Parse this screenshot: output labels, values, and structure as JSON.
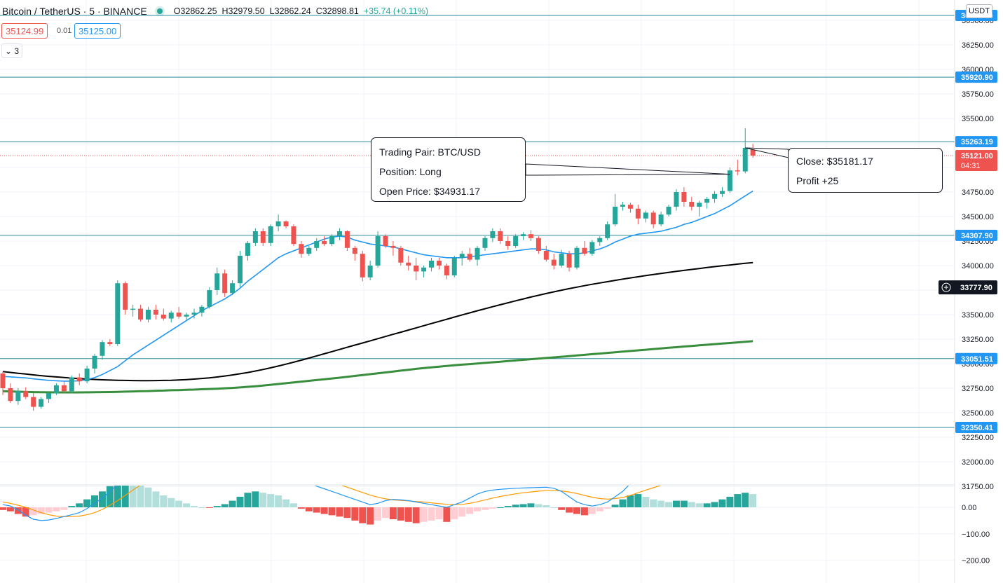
{
  "header": {
    "symbol": "Bitcoin / TetherUS · 5 · BINANCE",
    "ohlc_o": "O32862.25",
    "ohlc_h": "H32979.50",
    "ohlc_l": "L32862.24",
    "ohlc_c": "C32898.81",
    "change": "+35.74 (+0.11%)"
  },
  "trade": {
    "sell_price": "35124.99",
    "spread": "0.01",
    "buy_price": "35125.00"
  },
  "indicator_toggle": {
    "label": "⌄ 3"
  },
  "currency_label": "USDT",
  "annotations": {
    "open": {
      "line1": "Trading Pair: BTC/USD",
      "line2": "Position: Long",
      "line3": "Open Price: $34931.17"
    },
    "close": {
      "line1": "Close: $35181.17",
      "line2": "Profit +25"
    }
  },
  "colors": {
    "up": "#26a69a",
    "down": "#ef5350",
    "hline": "#2b8b9b",
    "ma_fast": "#2196f3",
    "ma_mid": "#000000",
    "ma_slow": "#388e3c",
    "macd_line": "#2196f3",
    "signal_line": "#ff9800",
    "price_badge": "#2196f3",
    "current_badge": "#ef5350"
  },
  "chart_data": {
    "type": "candlestick",
    "title": "",
    "ylim": [
      31600,
      36550
    ],
    "y_ticks": [
      31750,
      32000,
      32250,
      32500,
      32750,
      33000,
      33250,
      33500,
      33750,
      34000,
      34250,
      34500,
      34750,
      35000,
      35250,
      35500,
      35750,
      36000,
      36250,
      36500
    ],
    "y_tick_labels": [
      "31750.00",
      "32000.00",
      "32250.00",
      "32500.00",
      "32750.00",
      "33000.00",
      "33250.00",
      "33500.00",
      "33750.00",
      "34000.00",
      "34250.00",
      "34500.00",
      "34750.00",
      "35000.00",
      "35250.00",
      "35500.00",
      "35750.00",
      "36000.00",
      "36250.00",
      "36500.00"
    ],
    "horizontal_levels": [
      {
        "value": 36550.0,
        "label": "36550.00"
      },
      {
        "value": 35920.9,
        "label": "35920.90"
      },
      {
        "value": 35263.19,
        "label": "35263.19"
      },
      {
        "value": 34307.9,
        "label": "34307.90"
      },
      {
        "value": 33051.51,
        "label": "33051.51"
      },
      {
        "value": 32350.41,
        "label": "32350.41"
      }
    ],
    "current_price": {
      "value": 35121.0,
      "label": "35121.00",
      "countdown": "04:31"
    },
    "crosshair_price": {
      "value": 33777.9,
      "label": "33777.90"
    },
    "candles": [
      [
        32900,
        32920,
        32680,
        32750
      ],
      [
        32750,
        32800,
        32600,
        32620
      ],
      [
        32620,
        32750,
        32580,
        32720
      ],
      [
        32720,
        32760,
        32640,
        32660
      ],
      [
        32660,
        32700,
        32520,
        32560
      ],
      [
        32560,
        32660,
        32540,
        32640
      ],
      [
        32640,
        32720,
        32600,
        32700
      ],
      [
        32700,
        32800,
        32680,
        32780
      ],
      [
        32780,
        32820,
        32700,
        32720
      ],
      [
        32720,
        32880,
        32700,
        32860
      ],
      [
        32860,
        32900,
        32780,
        32820
      ],
      [
        32820,
        32980,
        32800,
        32950
      ],
      [
        32950,
        33100,
        32900,
        33080
      ],
      [
        33080,
        33240,
        33040,
        33220
      ],
      [
        33220,
        33250,
        33180,
        33200
      ],
      [
        33200,
        33850,
        33180,
        33820
      ],
      [
        33820,
        33840,
        33500,
        33550
      ],
      [
        33550,
        33600,
        33480,
        33560
      ],
      [
        33560,
        33600,
        33430,
        33450
      ],
      [
        33450,
        33580,
        33420,
        33550
      ],
      [
        33550,
        33600,
        33450,
        33500
      ],
      [
        33500,
        33560,
        33440,
        33460
      ],
      [
        33460,
        33540,
        33420,
        33520
      ],
      [
        33520,
        33580,
        33460,
        33480
      ],
      [
        33480,
        33520,
        33440,
        33500
      ],
      [
        33500,
        33560,
        33460,
        33520
      ],
      [
        33520,
        33600,
        33480,
        33580
      ],
      [
        33580,
        33780,
        33560,
        33750
      ],
      [
        33750,
        33980,
        33700,
        33920
      ],
      [
        33920,
        33960,
        33680,
        33720
      ],
      [
        33720,
        33850,
        33700,
        33820
      ],
      [
        33820,
        34150,
        33780,
        34100
      ],
      [
        34100,
        34250,
        34050,
        34230
      ],
      [
        34230,
        34380,
        34200,
        34350
      ],
      [
        34350,
        34380,
        34200,
        34230
      ],
      [
        34230,
        34420,
        34200,
        34400
      ],
      [
        34400,
        34520,
        34350,
        34450
      ],
      [
        34450,
        34460,
        34380,
        34400
      ],
      [
        34400,
        34420,
        34200,
        34220
      ],
      [
        34220,
        34250,
        34080,
        34120
      ],
      [
        34120,
        34200,
        34100,
        34180
      ],
      [
        34180,
        34280,
        34150,
        34250
      ],
      [
        34250,
        34300,
        34200,
        34220
      ],
      [
        34220,
        34320,
        34200,
        34300
      ],
      [
        34300,
        34380,
        34260,
        34350
      ],
      [
        34350,
        34360,
        34150,
        34180
      ],
      [
        34180,
        34200,
        34050,
        34120
      ],
      [
        34120,
        34150,
        33840,
        33880
      ],
      [
        33880,
        34050,
        33850,
        34000
      ],
      [
        34000,
        34350,
        33980,
        34300
      ],
      [
        34300,
        34320,
        34180,
        34200
      ],
      [
        34200,
        34250,
        34100,
        34180
      ],
      [
        34180,
        34200,
        34000,
        34030
      ],
      [
        34030,
        34100,
        33950,
        34000
      ],
      [
        34000,
        34080,
        33850,
        33940
      ],
      [
        33940,
        34000,
        33880,
        33980
      ],
      [
        33980,
        34080,
        33940,
        34050
      ],
      [
        34050,
        34080,
        33960,
        34000
      ],
      [
        34000,
        34020,
        33860,
        33900
      ],
      [
        33900,
        34100,
        33880,
        34080
      ],
      [
        34080,
        34150,
        34000,
        34120
      ],
      [
        34120,
        34180,
        34040,
        34060
      ],
      [
        34060,
        34200,
        34000,
        34180
      ],
      [
        34180,
        34300,
        34150,
        34280
      ],
      [
        34280,
        34380,
        34240,
        34350
      ],
      [
        34350,
        34380,
        34220,
        34250
      ],
      [
        34250,
        34300,
        34160,
        34200
      ],
      [
        34200,
        34320,
        34180,
        34300
      ],
      [
        34300,
        34340,
        34260,
        34320
      ],
      [
        34320,
        34360,
        34250,
        34280
      ],
      [
        34280,
        34300,
        34120,
        34150
      ],
      [
        34150,
        34200,
        34040,
        34060
      ],
      [
        34060,
        34120,
        33960,
        34000
      ],
      [
        34000,
        34160,
        33980,
        34120
      ],
      [
        34120,
        34150,
        33940,
        33980
      ],
      [
        33980,
        34200,
        33960,
        34180
      ],
      [
        34180,
        34250,
        34100,
        34120
      ],
      [
        34120,
        34260,
        34100,
        34240
      ],
      [
        34240,
        34300,
        34200,
        34280
      ],
      [
        34280,
        34450,
        34260,
        34420
      ],
      [
        34420,
        34730,
        34400,
        34600
      ],
      [
        34600,
        34650,
        34560,
        34620
      ],
      [
        34620,
        34640,
        34540,
        34580
      ],
      [
        34580,
        34620,
        34420,
        34480
      ],
      [
        34480,
        34560,
        34440,
        34540
      ],
      [
        34540,
        34560,
        34380,
        34420
      ],
      [
        34420,
        34550,
        34400,
        34520
      ],
      [
        34520,
        34620,
        34500,
        34600
      ],
      [
        34600,
        34780,
        34560,
        34750
      ],
      [
        34750,
        34800,
        34600,
        34650
      ],
      [
        34650,
        34700,
        34560,
        34600
      ],
      [
        34600,
        34660,
        34500,
        34640
      ],
      [
        34640,
        34700,
        34580,
        34680
      ],
      [
        34680,
        34760,
        34640,
        34730
      ],
      [
        34730,
        34800,
        34700,
        34760
      ],
      [
        34760,
        35000,
        34740,
        34970
      ],
      [
        34970,
        35080,
        34920,
        34960
      ],
      [
        34960,
        35400,
        34940,
        35200
      ],
      [
        35200,
        35240,
        35100,
        35121
      ]
    ],
    "ma_fast": [
      32870,
      32866,
      32860,
      32855,
      32845,
      32838,
      32830,
      32826,
      32822,
      32822,
      32826,
      32838,
      32858,
      32890,
      32930,
      32970,
      33030,
      33090,
      33140,
      33190,
      33240,
      33290,
      33340,
      33390,
      33440,
      33490,
      33540,
      33580,
      33620,
      33660,
      33710,
      33770,
      33840,
      33900,
      33960,
      34020,
      34080,
      34120,
      34150,
      34180,
      34210,
      34240,
      34270,
      34290,
      34300,
      34290,
      34260,
      34240,
      34220,
      34210,
      34200,
      34190,
      34170,
      34150,
      34130,
      34110,
      34100,
      34090,
      34080,
      34080,
      34080,
      34090,
      34100,
      34110,
      34120,
      34130,
      34140,
      34150,
      34160,
      34170,
      34170,
      34160,
      34140,
      34130,
      34120,
      34120,
      34130,
      34150,
      34170,
      34200,
      34240,
      34270,
      34300,
      34320,
      34330,
      34340,
      34350,
      34370,
      34390,
      34420,
      34440,
      34470,
      34500,
      34530,
      34570,
      34610,
      34660,
      34710,
      34760
    ],
    "ma_mid": [
      32920,
      32911,
      32902,
      32894,
      32886,
      32878,
      32871,
      32865,
      32859,
      32853,
      32848,
      32843,
      32839,
      32836,
      32833,
      32831,
      32829,
      32828,
      32827,
      32827,
      32828,
      32829,
      32831,
      32834,
      32838,
      32843,
      32849,
      32856,
      32864,
      32874,
      32885,
      32897,
      32910,
      32925,
      32941,
      32958,
      32976,
      32995,
      33015,
      33036,
      33057,
      33079,
      33101,
      33123,
      33145,
      33167,
      33189,
      33211,
      33233,
      33255,
      33277,
      33299,
      33321,
      33343,
      33365,
      33387,
      33409,
      33431,
      33453,
      33475,
      33497,
      33518,
      33539,
      33560,
      33581,
      33601,
      33621,
      33641,
      33660,
      33679,
      33697,
      33715,
      33732,
      33749,
      33765,
      33780,
      33795,
      33809,
      33823,
      33836,
      33849,
      33862,
      33874,
      33886,
      33898,
      33909,
      33920,
      33931,
      33941,
      33951,
      33961,
      33970,
      33980,
      33989,
      33998,
      34006,
      34015,
      34023,
      34031
    ],
    "ma_slow": [
      32720,
      32717,
      32714,
      32712,
      32710,
      32709,
      32708,
      32707,
      32707,
      32707,
      32707,
      32708,
      32709,
      32710,
      32711,
      32713,
      32715,
      32717,
      32719,
      32721,
      32724,
      32726,
      32729,
      32731,
      32734,
      32736,
      32739,
      32742,
      32745,
      32749,
      32753,
      32758,
      32764,
      32770,
      32777,
      32785,
      32793,
      32801,
      32809,
      32817,
      32825,
      32833,
      32841,
      32849,
      32857,
      32866,
      32875,
      32884,
      32893,
      32902,
      32911,
      32920,
      32929,
      32938,
      32947,
      32955,
      32963,
      32970,
      32977,
      32984,
      32990,
      32996,
      33002,
      33008,
      33014,
      33020,
      33027,
      33033,
      33039,
      33046,
      33052,
      33058,
      33064,
      33071,
      33077,
      33084,
      33090,
      33097,
      33103,
      33110,
      33116,
      33123,
      33129,
      33136,
      33142,
      33149,
      33155,
      33162,
      33168,
      33175,
      33181,
      33187,
      33193,
      33199,
      33205,
      33211,
      33217,
      33223,
      33229
    ],
    "macd": {
      "ylim": [
        -280,
        80
      ],
      "y_ticks": [
        0,
        -100,
        -200
      ],
      "y_tick_labels": [
        "0.00",
        "−100.00",
        "−200.00"
      ],
      "histogram": [
        -10,
        -15,
        -25,
        -35,
        -30,
        -25,
        -20,
        -15,
        -10,
        5,
        15,
        30,
        45,
        60,
        80,
        95,
        105,
        100,
        90,
        75,
        60,
        45,
        35,
        25,
        15,
        5,
        0,
        -2,
        5,
        12,
        25,
        40,
        55,
        60,
        55,
        50,
        45,
        30,
        15,
        -5,
        -15,
        -20,
        -25,
        -30,
        -35,
        -40,
        -50,
        -60,
        -65,
        -50,
        -40,
        -45,
        -50,
        -55,
        -60,
        -55,
        -50,
        -45,
        -55,
        -45,
        -35,
        -25,
        -15,
        -10,
        -5,
        0,
        5,
        10,
        12,
        15,
        12,
        8,
        0,
        -10,
        -20,
        -25,
        -30,
        -25,
        -15,
        -5,
        10,
        30,
        45,
        50,
        40,
        30,
        25,
        20,
        25,
        25,
        20,
        15,
        15,
        20,
        30,
        40,
        50,
        55,
        50
      ],
      "macd_line": [
        10,
        5,
        -10,
        -30,
        -45,
        -50,
        -48,
        -42,
        -35,
        -28,
        -20,
        -5,
        15,
        35,
        60,
        85,
        110,
        135,
        155,
        165,
        170,
        165,
        160,
        150,
        140,
        130,
        120,
        110,
        100,
        95,
        90,
        90,
        95,
        100,
        110,
        120,
        130,
        130,
        125,
        110,
        95,
        80,
        70,
        60,
        50,
        40,
        30,
        20,
        10,
        15,
        25,
        30,
        28,
        25,
        20,
        15,
        10,
        5,
        0,
        10,
        20,
        35,
        50,
        60,
        65,
        68,
        70,
        72,
        73,
        74,
        75,
        76,
        72,
        60,
        40,
        20,
        10,
        5,
        10,
        20,
        40,
        60,
        90,
        110,
        120,
        125,
        130,
        135,
        140,
        145,
        150,
        155,
        160,
        165,
        170,
        175,
        180,
        185,
        190
      ],
      "signal_line": [
        20,
        15,
        8,
        0,
        -10,
        -20,
        -28,
        -33,
        -35,
        -35,
        -33,
        -28,
        -20,
        -8,
        8,
        25,
        45,
        65,
        85,
        100,
        115,
        125,
        132,
        138,
        140,
        142,
        142,
        140,
        136,
        130,
        125,
        120,
        115,
        112,
        110,
        110,
        112,
        115,
        117,
        117,
        115,
        110,
        103,
        95,
        86,
        76,
        66,
        56,
        46,
        38,
        32,
        28,
        26,
        24,
        22,
        20,
        17,
        14,
        11,
        10,
        11,
        15,
        21,
        28,
        35,
        41,
        46,
        51,
        55,
        58,
        61,
        63,
        64,
        62,
        58,
        52,
        45,
        38,
        33,
        31,
        33,
        37,
        45,
        55,
        65,
        74,
        83,
        92,
        100,
        108,
        115,
        122,
        129,
        135,
        141,
        147,
        153,
        159,
        165
      ]
    }
  }
}
